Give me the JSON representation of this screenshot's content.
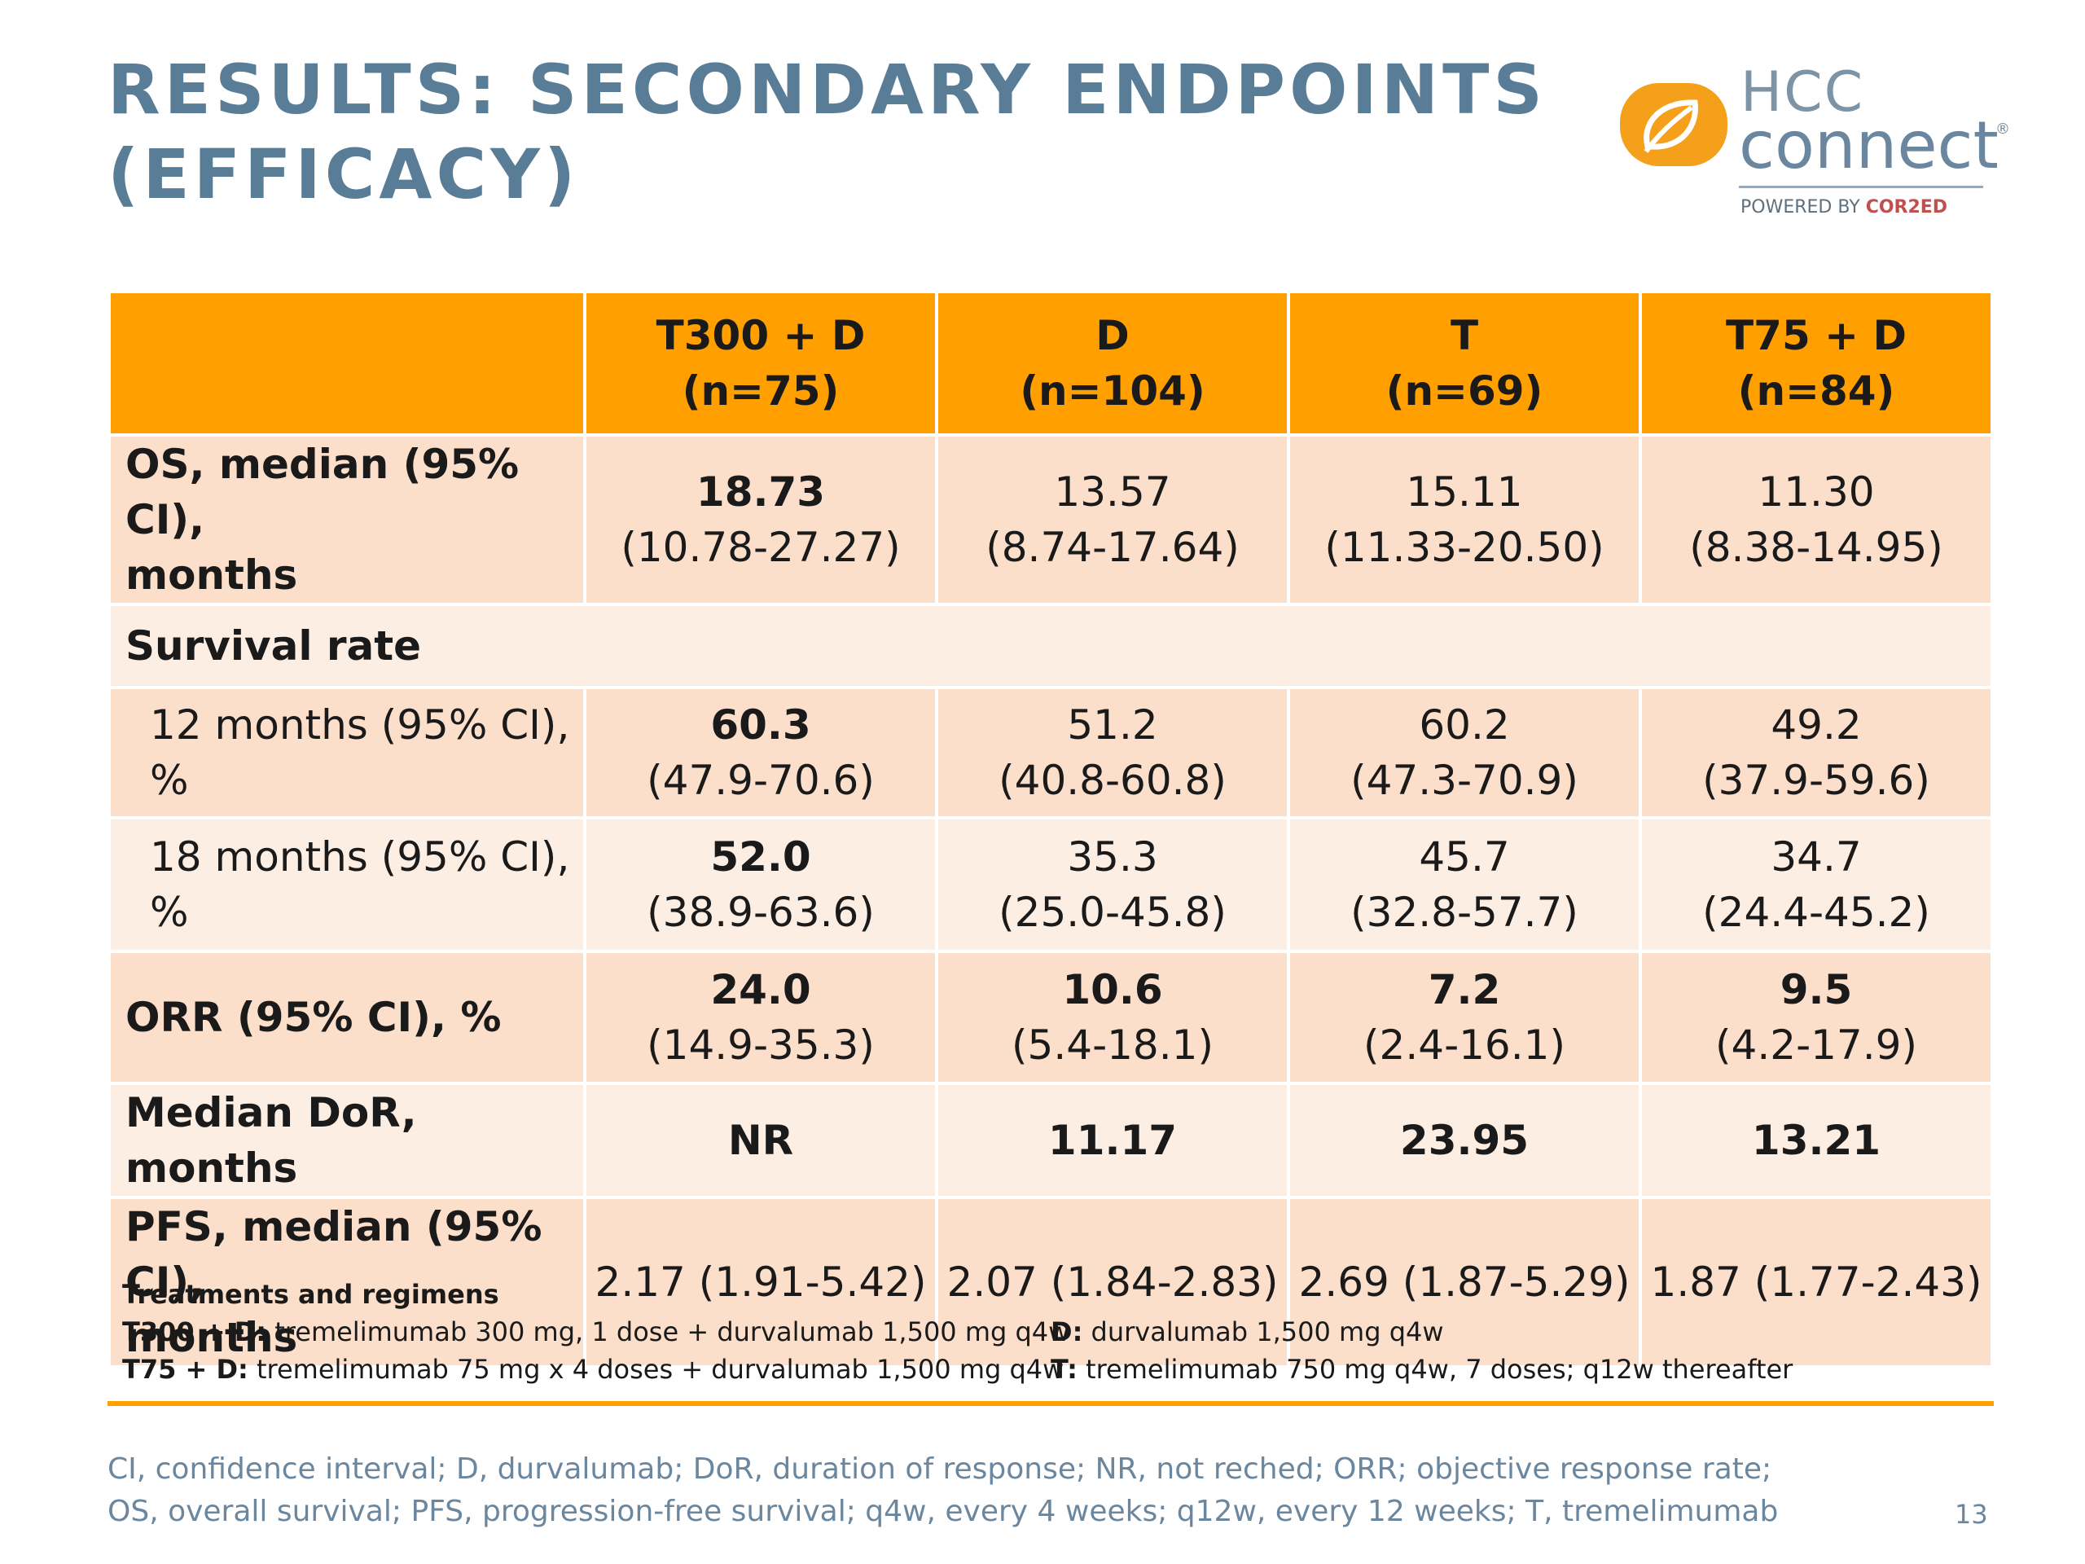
{
  "title": {
    "line1": "RESULTS: SECONDARY ENDPOINTS",
    "line2": "(EFFICACY)"
  },
  "logo": {
    "brand_top": "HCC",
    "brand_bottom": "connect",
    "registered": "®",
    "powered_prefix": "POWERED BY",
    "powered_brand": "COR2ED",
    "icon": "hcc-leaf-icon",
    "color_orange": "#f5a01a",
    "color_blue": "#6b879f"
  },
  "table": {
    "columns": [
      {
        "name": "T300 + D",
        "n": "(n=75)"
      },
      {
        "name": "D",
        "n": "(n=104)"
      },
      {
        "name": "T",
        "n": "(n=69)"
      },
      {
        "name": "T75 + D",
        "n": "(n=84)"
      }
    ],
    "os": {
      "label1": "OS, median (95% CI),",
      "label2": "months",
      "cells": [
        {
          "main": "18.73",
          "ci": "(10.78-27.27)"
        },
        {
          "main": "13.57",
          "ci": "(8.74-17.64)"
        },
        {
          "main": "15.11",
          "ci": "(11.33-20.50)"
        },
        {
          "main": "11.30",
          "ci": "(8.38-14.95)"
        }
      ]
    },
    "survival_rate": {
      "label": "Survival rate"
    },
    "m12": {
      "label": "12 months (95% CI), %",
      "cells": [
        {
          "main": "60.3",
          "ci": "(47.9-70.6)"
        },
        {
          "main": "51.2",
          "ci": "(40.8-60.8)"
        },
        {
          "main": "60.2",
          "ci": "(47.3-70.9)"
        },
        {
          "main": "49.2",
          "ci": "(37.9-59.6)"
        }
      ]
    },
    "m18": {
      "label": "18 months (95% CI), %",
      "cells": [
        {
          "main": "52.0",
          "ci": "(38.9-63.6)"
        },
        {
          "main": "35.3",
          "ci": "(25.0-45.8)"
        },
        {
          "main": "45.7",
          "ci": "(32.8-57.7)"
        },
        {
          "main": "34.7",
          "ci": "(24.4-45.2)"
        }
      ]
    },
    "orr": {
      "label": "ORR (95% CI), %",
      "cells": [
        {
          "main": "24.0",
          "ci": "(14.9-35.3)"
        },
        {
          "main": "10.6",
          "ci": "(5.4-18.1)"
        },
        {
          "main": "7.2",
          "ci": "(2.4-16.1)"
        },
        {
          "main": "9.5",
          "ci": "(4.2-17.9)"
        }
      ]
    },
    "dor": {
      "label": "Median DoR, months",
      "cells": [
        "NR",
        "11.17",
        "23.95",
        "13.21"
      ]
    },
    "pfs": {
      "label1": "PFS, median (95% CI),",
      "label2": "months",
      "cells": [
        "2.17 (1.91-5.42)",
        "2.07 (1.84-2.83)",
        "2.69 (1.87-5.29)",
        "1.87 (1.77-2.43)"
      ]
    }
  },
  "treatments": {
    "heading": "Treatments and regimens",
    "items": [
      {
        "key": "T300 + D:",
        "text": " tremelimumab 300 mg, 1 dose + durvalumab 1,500 mg q4w"
      },
      {
        "key": "D:",
        "text": " durvalumab 1,500 mg q4w"
      },
      {
        "key": "T75 + D:",
        "text": " tremelimumab 75 mg x 4 doses + durvalumab 1,500 mg q4w"
      },
      {
        "key": "T:",
        "text": " tremelimumab 750 mg q4w, 7 doses; q12w thereafter"
      }
    ]
  },
  "abbreviations": {
    "line1": "CI, confidence interval; D, durvalumab; DoR, duration of response; NR, not reched; ORR; objective response rate;",
    "line2": "OS, overall survival; PFS, progression-free survival; q4w, every 4 weeks; q12w, every 12 weeks; T, tremelimumab"
  },
  "page_number": "13",
  "colors": {
    "header_orange": "#ffa000",
    "row_dark": "#fcdfca",
    "row_light": "#fdeee4",
    "title_blue": "#5a7d97"
  }
}
